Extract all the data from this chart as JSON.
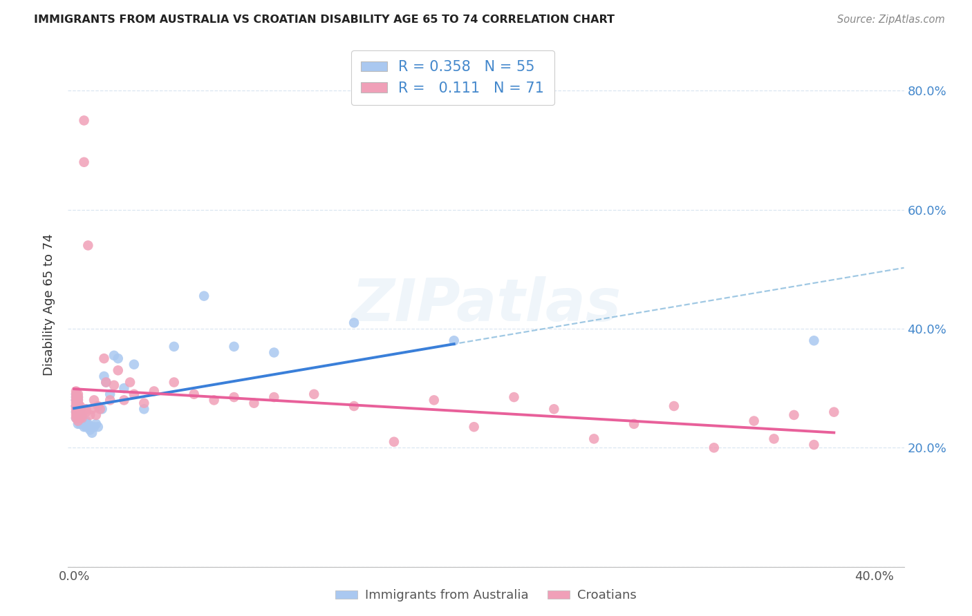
{
  "title": "IMMIGRANTS FROM AUSTRALIA VS CROATIAN DISABILITY AGE 65 TO 74 CORRELATION CHART",
  "source": "Source: ZipAtlas.com",
  "ylabel": "Disability Age 65 to 74",
  "xlim": [
    -0.003,
    0.415
  ],
  "ylim": [
    0.0,
    0.88
  ],
  "x_ticks": [
    0.0,
    0.1,
    0.2,
    0.3,
    0.4
  ],
  "x_tick_labels": [
    "0.0%",
    "",
    "",
    "",
    "40.0%"
  ],
  "y_ticks": [
    0.0,
    0.2,
    0.4,
    0.6,
    0.8
  ],
  "y_tick_labels": [
    "",
    "20.0%",
    "40.0%",
    "60.0%",
    "80.0%"
  ],
  "australia_N": 55,
  "australia_R": 0.358,
  "croatian_N": 71,
  "croatian_R": 0.111,
  "australia_color": "#aac8f0",
  "croatian_color": "#f0a0b8",
  "aus_trend_color": "#3a7fd9",
  "cro_trend_color": "#e8609a",
  "dashed_color": "#88bbdd",
  "right_axis_color": "#4488cc",
  "grid_color": "#d8e4f0",
  "watermark": "ZIPatlas",
  "legend_label_australia": "Immigrants from Australia",
  "legend_label_croatian": "Croatians",
  "aus_x": [
    0.001,
    0.001,
    0.001,
    0.001,
    0.001,
    0.001,
    0.001,
    0.001,
    0.002,
    0.002,
    0.002,
    0.002,
    0.002,
    0.002,
    0.002,
    0.002,
    0.002,
    0.003,
    0.003,
    0.003,
    0.003,
    0.003,
    0.003,
    0.004,
    0.004,
    0.004,
    0.005,
    0.005,
    0.006,
    0.006,
    0.006,
    0.007,
    0.007,
    0.008,
    0.008,
    0.009,
    0.01,
    0.011,
    0.012,
    0.014,
    0.015,
    0.016,
    0.018,
    0.02,
    0.022,
    0.025,
    0.03,
    0.035,
    0.05,
    0.065,
    0.08,
    0.1,
    0.14,
    0.19,
    0.37
  ],
  "aus_y": [
    0.25,
    0.26,
    0.27,
    0.27,
    0.28,
    0.28,
    0.285,
    0.29,
    0.24,
    0.25,
    0.255,
    0.26,
    0.265,
    0.27,
    0.275,
    0.28,
    0.285,
    0.24,
    0.245,
    0.25,
    0.255,
    0.26,
    0.265,
    0.24,
    0.245,
    0.25,
    0.235,
    0.245,
    0.235,
    0.24,
    0.245,
    0.235,
    0.24,
    0.23,
    0.235,
    0.225,
    0.235,
    0.24,
    0.235,
    0.265,
    0.32,
    0.31,
    0.29,
    0.355,
    0.35,
    0.3,
    0.34,
    0.265,
    0.37,
    0.455,
    0.37,
    0.36,
    0.41,
    0.38,
    0.38
  ],
  "cro_x": [
    0.001,
    0.001,
    0.001,
    0.001,
    0.001,
    0.001,
    0.001,
    0.001,
    0.001,
    0.001,
    0.002,
    0.002,
    0.002,
    0.002,
    0.002,
    0.002,
    0.002,
    0.002,
    0.002,
    0.002,
    0.003,
    0.003,
    0.003,
    0.003,
    0.003,
    0.004,
    0.004,
    0.004,
    0.005,
    0.005,
    0.006,
    0.006,
    0.007,
    0.008,
    0.009,
    0.01,
    0.011,
    0.012,
    0.013,
    0.015,
    0.016,
    0.018,
    0.02,
    0.022,
    0.025,
    0.028,
    0.03,
    0.035,
    0.04,
    0.05,
    0.06,
    0.07,
    0.08,
    0.09,
    0.1,
    0.12,
    0.14,
    0.16,
    0.18,
    0.2,
    0.22,
    0.24,
    0.26,
    0.28,
    0.3,
    0.32,
    0.34,
    0.35,
    0.36,
    0.37,
    0.38
  ],
  "cro_y": [
    0.25,
    0.255,
    0.26,
    0.265,
    0.27,
    0.275,
    0.28,
    0.285,
    0.29,
    0.295,
    0.245,
    0.25,
    0.255,
    0.26,
    0.265,
    0.27,
    0.275,
    0.28,
    0.285,
    0.29,
    0.25,
    0.255,
    0.26,
    0.265,
    0.27,
    0.25,
    0.255,
    0.26,
    0.68,
    0.75,
    0.26,
    0.265,
    0.54,
    0.255,
    0.265,
    0.28,
    0.255,
    0.27,
    0.265,
    0.35,
    0.31,
    0.28,
    0.305,
    0.33,
    0.28,
    0.31,
    0.29,
    0.275,
    0.295,
    0.31,
    0.29,
    0.28,
    0.285,
    0.275,
    0.285,
    0.29,
    0.27,
    0.21,
    0.28,
    0.235,
    0.285,
    0.265,
    0.215,
    0.24,
    0.27,
    0.2,
    0.245,
    0.215,
    0.255,
    0.205,
    0.26
  ]
}
